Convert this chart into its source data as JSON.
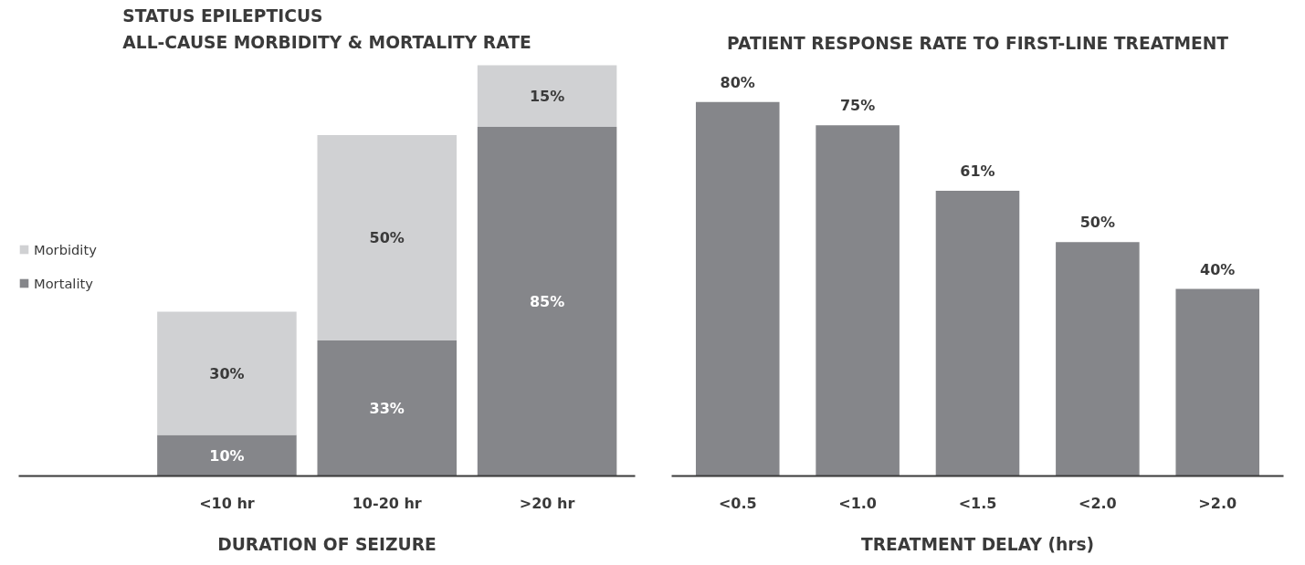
{
  "chart_data": [
    {
      "type": "bar",
      "title": "STATUS EPILEPTICUS\nALL-CAUSE MORBIDITY & MORTALITY RATE",
      "xlabel": "DURATION OF SEIZURE",
      "categories": [
        "<10 hr",
        "10-20 hr",
        ">20 hr"
      ],
      "stacked": true,
      "series": [
        {
          "name": "Mortality",
          "color": "#85868a",
          "values": [
            10,
            33,
            85
          ],
          "value_labels": [
            "10%",
            "33%",
            "85%"
          ]
        },
        {
          "name": "Morbidity",
          "color": "#d0d1d3",
          "values": [
            30,
            50,
            15
          ],
          "value_labels": [
            "30%",
            "50%",
            "15%"
          ]
        }
      ],
      "legend": "left",
      "grid": false,
      "tick_labels": "x"
    },
    {
      "type": "bar",
      "title": "PATIENT RESPONSE RATE TO FIRST-LINE TREATMENT",
      "xlabel": "TREATMENT DELAY (hrs)",
      "categories": [
        "<0.5",
        "<1.0",
        "<1.5",
        "<2.0",
        ">2.0"
      ],
      "values": [
        80,
        75,
        61,
        50,
        40
      ],
      "value_labels": [
        "80%",
        "75%",
        "61%",
        "50%",
        "40%"
      ],
      "color": "#85868a",
      "grid": false,
      "tick_labels": "x"
    }
  ]
}
